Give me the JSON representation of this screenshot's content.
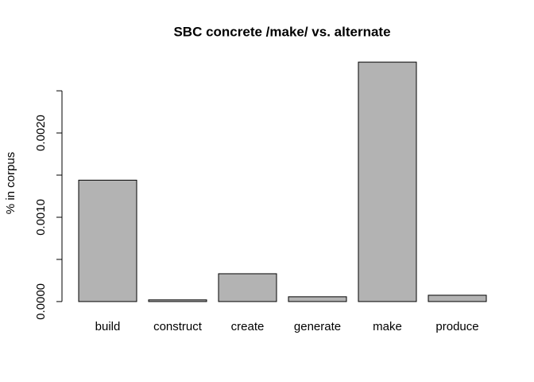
{
  "chart_data": {
    "type": "bar",
    "title": "SBC concrete /make/ vs. alternate",
    "y_label": "% in corpus",
    "categories": [
      "build",
      "construct",
      "create",
      "generate",
      "make",
      "produce"
    ],
    "values": [
      0.00144,
      2e-05,
      0.00033,
      5.7e-05,
      0.00284,
      7.5e-05
    ],
    "color": "#b3b3b3",
    "ylim": [
      -0.000114,
      0.002954
    ],
    "yticks": [
      {
        "value": 0,
        "label": "0.0000"
      },
      {
        "value": 0.001,
        "label": "0.0010"
      },
      {
        "value": 0.002,
        "label": "0.0020"
      }
    ],
    "minor_yticks": [
      0.0005,
      0.0015,
      0.0025
    ]
  }
}
